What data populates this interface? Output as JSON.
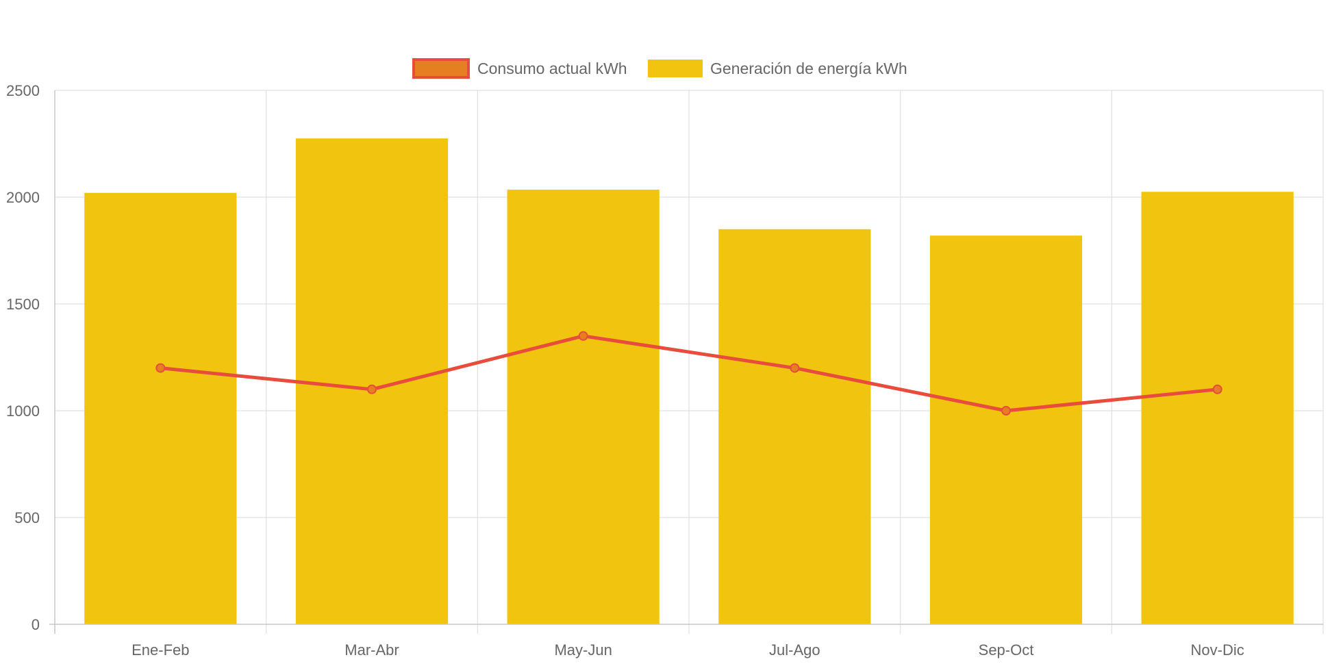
{
  "chart_data": {
    "type": "bar",
    "categories": [
      "Ene-Feb",
      "Mar-Abr",
      "May-Jun",
      "Jul-Ago",
      "Sep-Oct",
      "Nov-Dic"
    ],
    "series": [
      {
        "name": "Consumo actual kWh",
        "type": "line",
        "values": [
          1200,
          1100,
          1350,
          1200,
          1000,
          1100
        ],
        "color": "#e74c3c",
        "fill_color": "#e67e22"
      },
      {
        "name": "Generación de energía kWh",
        "type": "bar",
        "values": [
          2020,
          2275,
          2035,
          1850,
          1820,
          2025
        ],
        "color": "#f1c40f"
      }
    ],
    "ylim": [
      0,
      2500
    ],
    "yticks": [
      "0",
      "500",
      "1000",
      "1500",
      "2000",
      "2500"
    ],
    "grid": true,
    "legend": "top-center",
    "title": "",
    "xlabel": "",
    "ylabel": ""
  },
  "colors": {
    "grid": "#e0e0e0",
    "axis": "#c8c8c8",
    "text": "#666666"
  }
}
